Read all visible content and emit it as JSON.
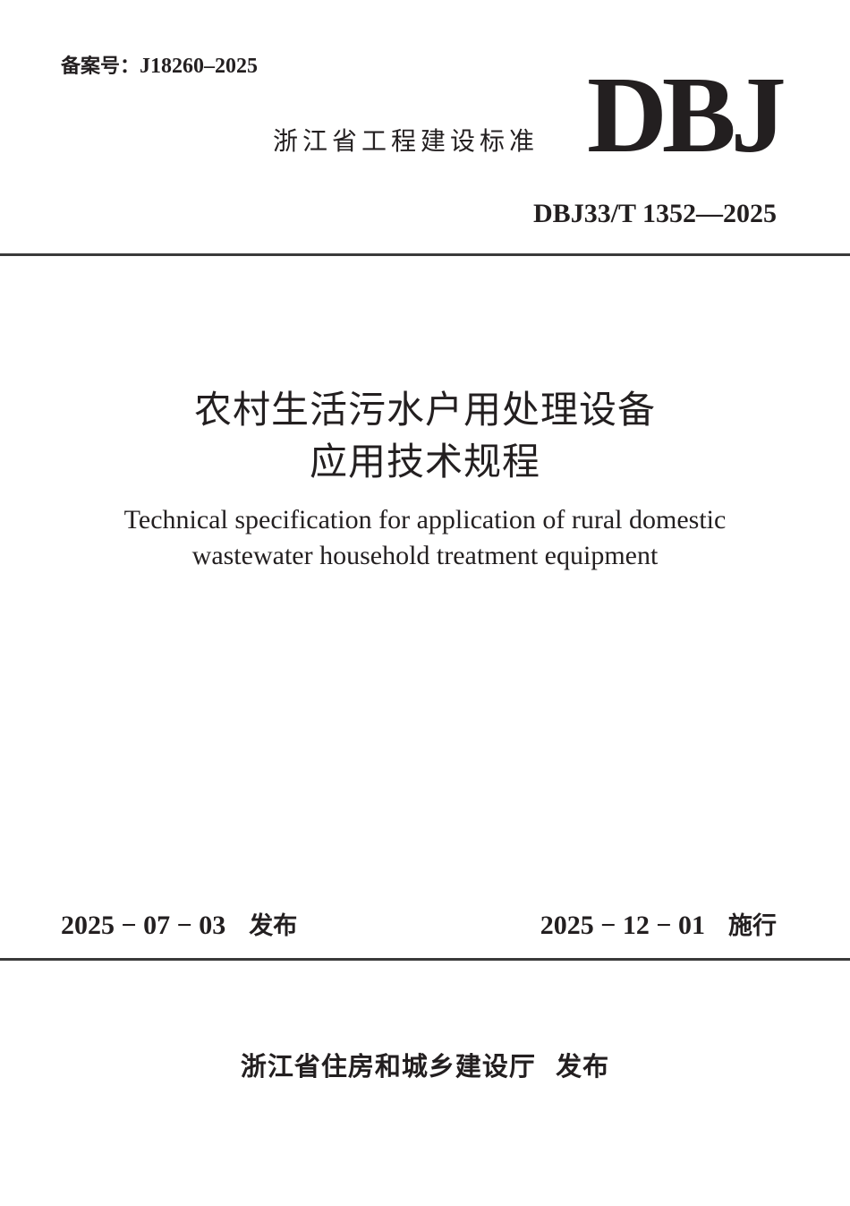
{
  "header": {
    "record_label": "备案号：",
    "record_number": "J18260–2025",
    "series": "浙江省工程建设标准",
    "logo": "DBJ",
    "standard_code": "DBJ33/T 1352—2025"
  },
  "title": {
    "cn_line1": "农村生活污水户用处理设备",
    "cn_line2": "应用技术规程",
    "en_line1": "Technical specification for application of rural domestic",
    "en_line2": "wastewater household treatment equipment"
  },
  "dates": {
    "issue_date": "2025 − 07 − 03",
    "issue_label": "发布",
    "implement_date": "2025 − 12 − 01",
    "implement_label": "施行"
  },
  "footer": {
    "publisher": "浙江省住房和城乡建设厅  发布"
  }
}
